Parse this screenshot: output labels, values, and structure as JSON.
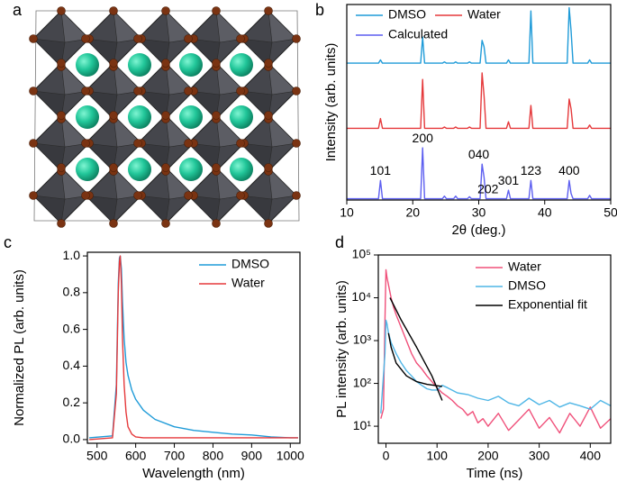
{
  "panel_labels": [
    "a",
    "b",
    "c",
    "d"
  ],
  "chart_data": [
    {
      "type": "line",
      "offset_traces": true,
      "legend_columns": 2,
      "xlabel": "2θ (deg.)",
      "ylabel": "Intensity (arb. units)",
      "xlim": [
        10,
        50
      ],
      "xticks": [
        10,
        20,
        30,
        40,
        50
      ],
      "ylim": [
        0,
        1
      ],
      "x": [
        10,
        14.8,
        15.1,
        15.4,
        21.2,
        21.5,
        21.8,
        24.5,
        24.8,
        25.1,
        26.2,
        26.5,
        26.8,
        28.3,
        28.6,
        28.9,
        30.2,
        30.5,
        30.8,
        31.1,
        34.2,
        34.5,
        34.8,
        37.6,
        37.9,
        38.2,
        43.4,
        43.7,
        44.0,
        44.3,
        46.5,
        46.8,
        47.1,
        50
      ],
      "series": [
        {
          "name": "DMSO",
          "color": "#1f9bd8",
          "values": [
            0.1,
            0.1,
            0.15,
            0.1,
            0.1,
            0.5,
            0.1,
            0.1,
            0.12,
            0.1,
            0.1,
            0.12,
            0.1,
            0.1,
            0.12,
            0.1,
            0.1,
            0.45,
            0.35,
            0.1,
            0.1,
            0.15,
            0.1,
            0.1,
            0.9,
            0.1,
            0.1,
            0.95,
            0.6,
            0.1,
            0.1,
            0.15,
            0.1,
            0.1
          ]
        },
        {
          "name": "Water",
          "color": "#e5393b",
          "values": [
            0.1,
            0.1,
            0.25,
            0.1,
            0.1,
            0.85,
            0.1,
            0.1,
            0.12,
            0.1,
            0.1,
            0.12,
            0.1,
            0.1,
            0.12,
            0.1,
            0.1,
            0.95,
            0.6,
            0.1,
            0.1,
            0.2,
            0.1,
            0.1,
            0.45,
            0.1,
            0.1,
            0.55,
            0.4,
            0.1,
            0.1,
            0.15,
            0.1,
            0.1
          ]
        },
        {
          "name": "Calculated",
          "color": "#5d5ff0",
          "values": [
            0.02,
            0.02,
            0.3,
            0.02,
            0.02,
            0.8,
            0.02,
            0.02,
            0.06,
            0.02,
            0.02,
            0.06,
            0.02,
            0.02,
            0.05,
            0.02,
            0.02,
            0.55,
            0.35,
            0.02,
            0.02,
            0.15,
            0.02,
            0.02,
            0.3,
            0.02,
            0.02,
            0.3,
            0.1,
            0.02,
            0.02,
            0.07,
            0.02,
            0.02
          ]
        }
      ],
      "annotations": [
        {
          "text": "101",
          "x": 15.1
        },
        {
          "text": "200",
          "x": 21.5
        },
        {
          "text": "040",
          "x": 30.0
        },
        {
          "text": "202",
          "x": 31.4
        },
        {
          "text": "301",
          "x": 34.5
        },
        {
          "text": "123",
          "x": 37.9
        },
        {
          "text": "400",
          "x": 43.7
        }
      ]
    },
    {
      "type": "line",
      "legend_columns": 1,
      "xlabel": "Wavelength (nm)",
      "ylabel": "Normalized PL (arb. units)",
      "xlim": [
        475,
        1025
      ],
      "xticks": [
        500,
        600,
        700,
        800,
        900,
        1000
      ],
      "ylim": [
        -0.02,
        1.02
      ],
      "yticks": [
        {
          "value": 0,
          "label": "0.0"
        },
        0.2,
        0.4,
        0.6,
        0.8,
        {
          "value": 1,
          "label": "1.0"
        }
      ],
      "x": [
        480,
        540,
        550,
        555,
        558,
        560,
        563,
        566,
        570,
        575,
        580,
        590,
        600,
        620,
        650,
        700,
        750,
        800,
        850,
        900,
        950,
        1000,
        1020
      ],
      "series": [
        {
          "name": "DMSO",
          "color": "#1f9bd8",
          "values": [
            0.01,
            0.02,
            0.3,
            0.85,
            0.99,
            1.0,
            0.93,
            0.75,
            0.55,
            0.42,
            0.35,
            0.27,
            0.22,
            0.16,
            0.11,
            0.07,
            0.05,
            0.04,
            0.03,
            0.025,
            0.015,
            0.01,
            0.01
          ]
        },
        {
          "name": "Water",
          "color": "#e5393b",
          "values": [
            0.0,
            0.01,
            0.25,
            0.8,
            0.97,
            1.0,
            0.85,
            0.55,
            0.3,
            0.15,
            0.07,
            0.03,
            0.015,
            0.01,
            0.01,
            0.01,
            0.01,
            0.01,
            0.01,
            0.01,
            0.01,
            0.01,
            0.01
          ]
        }
      ]
    },
    {
      "type": "line",
      "log_y": true,
      "legend_columns": 1,
      "xlabel": "Time (ns)",
      "ylabel": "PL intensity (arb. units)",
      "xlim": [
        -15,
        440
      ],
      "xticks": [
        0,
        100,
        200,
        300,
        400
      ],
      "ylim": [
        4,
        100000
      ],
      "yticks": [
        {
          "value": 10,
          "label": "10¹"
        },
        {
          "value": 100,
          "label": "10²"
        },
        {
          "value": 1000,
          "label": "10³"
        },
        {
          "value": 10000,
          "label": "10⁴"
        },
        {
          "value": 100000,
          "label": "10⁵"
        }
      ],
      "series": [
        {
          "name": "Water",
          "color": "#f0507a",
          "x": [
            -10,
            -5,
            -2,
            0,
            2,
            5,
            10,
            15,
            20,
            30,
            40,
            50,
            60,
            70,
            80,
            90,
            100,
            110,
            120,
            130,
            140,
            150,
            160,
            170,
            180,
            190,
            200,
            220,
            240,
            260,
            280,
            300,
            320,
            340,
            360,
            380,
            400,
            420,
            440
          ],
          "values": [
            15,
            25,
            3000,
            45000,
            30000,
            20000,
            10000,
            6000,
            4000,
            2000,
            1000,
            500,
            300,
            220,
            150,
            110,
            80,
            60,
            50,
            40,
            30,
            25,
            18,
            22,
            12,
            15,
            10,
            20,
            8,
            14,
            25,
            9,
            16,
            7,
            20,
            10,
            28,
            9,
            15
          ]
        },
        {
          "name": "DMSO",
          "color": "#4fb6e6",
          "x": [
            -10,
            -2,
            0,
            2,
            5,
            10,
            20,
            30,
            40,
            50,
            60,
            70,
            80,
            90,
            100,
            110,
            120,
            140,
            160,
            180,
            200,
            220,
            240,
            260,
            280,
            300,
            320,
            340,
            360,
            380,
            400,
            420,
            440
          ],
          "values": [
            20,
            500,
            3000,
            2500,
            1500,
            900,
            500,
            300,
            200,
            150,
            110,
            90,
            75,
            70,
            70,
            90,
            80,
            60,
            55,
            45,
            40,
            50,
            35,
            30,
            45,
            32,
            40,
            28,
            35,
            30,
            25,
            40,
            30
          ]
        },
        {
          "name": "Exponential fit",
          "color": "#000000",
          "x": [
            8,
            30,
            60,
            90,
            110,
            null,
            5,
            10,
            20,
            40,
            60,
            80,
            110
          ],
          "values": [
            10000,
            3000,
            700,
            150,
            40,
            null,
            1500,
            700,
            300,
            150,
            110,
            95,
            85
          ]
        }
      ]
    }
  ]
}
